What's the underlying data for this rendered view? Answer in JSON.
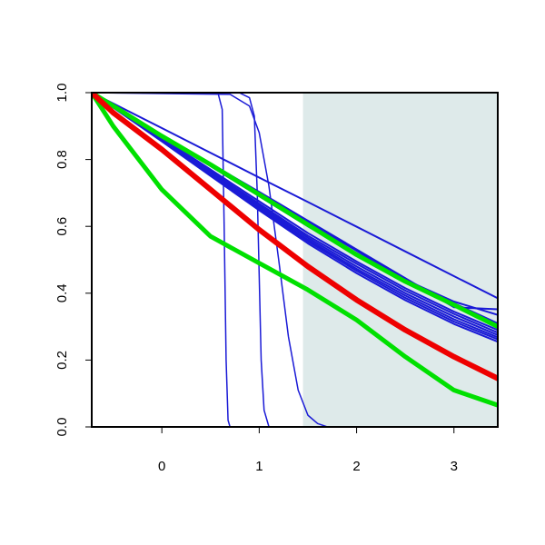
{
  "chart_data": {
    "type": "line",
    "title": "",
    "xlabel": "",
    "ylabel": "",
    "xlim": [
      -0.72,
      3.45
    ],
    "ylim": [
      0,
      1
    ],
    "x_ticks": [
      0,
      1,
      2,
      3
    ],
    "x_tick_labels": [
      "0",
      "1",
      "2",
      "3"
    ],
    "y_ticks": [
      0,
      0.2,
      0.4,
      0.6,
      0.8,
      1
    ],
    "y_tick_labels": [
      "0.0",
      "0.2",
      "0.4",
      "0.6",
      "0.8",
      "1.0"
    ],
    "grid": false,
    "shaded_region": {
      "x_from": 1.45,
      "x_to": 3.45,
      "color": "#deeaea"
    },
    "series": [
      {
        "color": "#1a1ad6",
        "width": 2,
        "x": [
          -0.72,
          0.0,
          0.5,
          1.0,
          1.5,
          2.0,
          2.5,
          3.0,
          3.45
        ],
        "y": [
          1.0,
          0.894,
          0.82,
          0.746,
          0.673,
          0.599,
          0.525,
          0.451,
          0.385
        ]
      },
      {
        "color": "#1a1ad6",
        "width": 2,
        "x": [
          -0.72,
          0.0,
          0.5,
          1.0,
          1.5,
          2.0,
          2.5,
          3.0,
          3.45
        ],
        "y": [
          1.0,
          0.874,
          0.788,
          0.703,
          0.617,
          0.531,
          0.445,
          0.358,
          0.352
        ]
      },
      {
        "color": "#1a1ad6",
        "width": 2,
        "x": [
          -0.72,
          0.0,
          0.5,
          1.0,
          1.5,
          2.0,
          2.5,
          3.0,
          3.45
        ],
        "y": [
          1.0,
          0.873,
          0.786,
          0.7,
          0.613,
          0.527,
          0.44,
          0.375,
          0.335
        ]
      },
      {
        "color": "#1a1ad6",
        "width": 2,
        "x": [
          -0.72,
          0.0,
          0.5,
          1.0,
          1.5,
          2.0,
          2.5,
          3.0,
          3.45
        ],
        "y": [
          1.0,
          0.87,
          0.78,
          0.69,
          0.6,
          0.52,
          0.44,
          0.37,
          0.31
        ]
      },
      {
        "color": "#1a1ad6",
        "width": 2,
        "x": [
          -0.72,
          0.0,
          0.5,
          1.0,
          1.5,
          2.0,
          2.5,
          3.0,
          3.45
        ],
        "y": [
          1.0,
          0.865,
          0.77,
          0.675,
          0.58,
          0.495,
          0.415,
          0.345,
          0.29
        ]
      },
      {
        "color": "#1a1ad6",
        "width": 2,
        "x": [
          -0.72,
          0.0,
          0.5,
          1.0,
          1.5,
          2.0,
          2.5,
          3.0,
          3.45
        ],
        "y": [
          1.0,
          0.862,
          0.765,
          0.668,
          0.572,
          0.488,
          0.408,
          0.338,
          0.282
        ]
      },
      {
        "color": "#1a1ad6",
        "width": 2,
        "x": [
          -0.72,
          0.0,
          0.5,
          1.0,
          1.5,
          2.0,
          2.5,
          3.0,
          3.45
        ],
        "y": [
          1.0,
          0.86,
          0.762,
          0.663,
          0.566,
          0.48,
          0.4,
          0.33,
          0.275
        ]
      },
      {
        "color": "#1a1ad6",
        "width": 2,
        "x": [
          -0.72,
          0.0,
          0.5,
          1.0,
          1.5,
          2.0,
          2.5,
          3.0,
          3.45
        ],
        "y": [
          1.0,
          0.858,
          0.758,
          0.658,
          0.56,
          0.473,
          0.393,
          0.322,
          0.268
        ]
      },
      {
        "color": "#1a1ad6",
        "width": 2,
        "x": [
          -0.72,
          0.0,
          0.5,
          1.0,
          1.5,
          2.0,
          2.5,
          3.0,
          3.45
        ],
        "y": [
          1.0,
          0.856,
          0.755,
          0.653,
          0.555,
          0.467,
          0.386,
          0.315,
          0.262
        ]
      },
      {
        "color": "#1a1ad6",
        "width": 2,
        "x": [
          -0.72,
          0.0,
          0.5,
          1.0,
          1.5,
          2.0,
          2.5,
          3.0,
          3.45
        ],
        "y": [
          1.0,
          0.854,
          0.751,
          0.648,
          0.549,
          0.46,
          0.379,
          0.308,
          0.255
        ]
      },
      {
        "color": "#1a1ad6",
        "width": 1.5,
        "x": [
          -0.72,
          0.5,
          0.58,
          0.62,
          0.64,
          0.66,
          0.68,
          0.7,
          3.45
        ],
        "y": [
          1.0,
          1.0,
          0.995,
          0.95,
          0.6,
          0.2,
          0.02,
          0.0,
          0.0
        ]
      },
      {
        "color": "#1a1ad6",
        "width": 1.5,
        "x": [
          -0.72,
          0.8,
          0.9,
          0.95,
          0.98,
          1.0,
          1.02,
          1.05,
          1.1,
          3.45
        ],
        "y": [
          1.0,
          0.999,
          0.985,
          0.93,
          0.7,
          0.45,
          0.2,
          0.05,
          0.0,
          0.0
        ]
      },
      {
        "color": "#1a1ad6",
        "width": 1.5,
        "x": [
          -0.72,
          0.7,
          0.9,
          1.0,
          1.1,
          1.2,
          1.3,
          1.4,
          1.5,
          1.6,
          1.7,
          3.45
        ],
        "y": [
          1.0,
          0.995,
          0.96,
          0.88,
          0.72,
          0.5,
          0.27,
          0.11,
          0.035,
          0.01,
          0.0,
          0.0
        ]
      },
      {
        "color": "#00e000",
        "width": 5,
        "x": [
          -0.72,
          -0.5,
          0.0,
          0.5,
          1.0,
          1.5,
          2.0,
          2.5,
          3.0,
          3.45
        ],
        "y": [
          1.0,
          0.9,
          0.71,
          0.57,
          0.49,
          0.41,
          0.32,
          0.21,
          0.11,
          0.065
        ]
      },
      {
        "color": "#00e000",
        "width": 5,
        "x": [
          -0.72,
          0.0,
          0.5,
          1.0,
          1.5,
          2.0,
          2.5,
          3.0,
          3.45
        ],
        "y": [
          1.0,
          0.87,
          0.785,
          0.695,
          0.605,
          0.515,
          0.435,
          0.365,
          0.3
        ]
      },
      {
        "color": "#ee0000",
        "width": 6,
        "x": [
          -0.72,
          -0.5,
          0.0,
          0.5,
          1.0,
          1.5,
          2.0,
          2.5,
          3.0,
          3.45
        ],
        "y": [
          1.0,
          0.94,
          0.83,
          0.71,
          0.59,
          0.48,
          0.38,
          0.29,
          0.21,
          0.145
        ]
      }
    ]
  }
}
